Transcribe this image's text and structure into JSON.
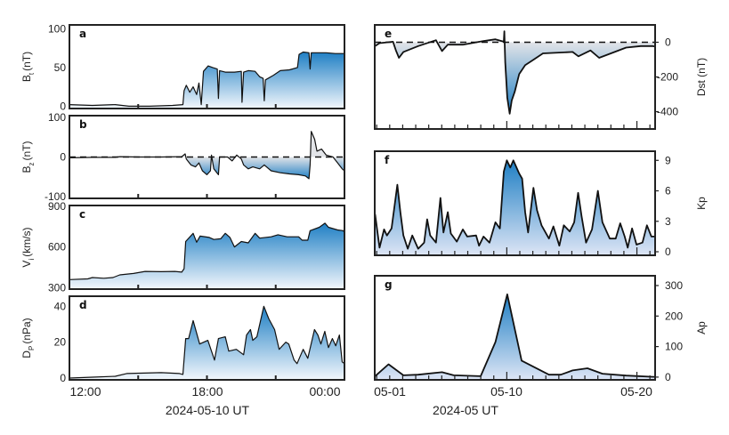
{
  "figure": {
    "left_xlabel": "2024-05-10 UT",
    "left_xticks": [
      "12:00",
      "18:00",
      "00:00"
    ],
    "right_xlabel": "2024-05 UT",
    "right_xticks": [
      "05-01",
      "05-10",
      "05-20"
    ]
  },
  "colors": {
    "blue": "#1f7fc4",
    "light": "#f3f7fc",
    "gray": "#e2e4e8",
    "lavender": "#dde5f5",
    "line": "#111111"
  },
  "chart_data": [
    {
      "id": "a",
      "type": "area",
      "panel_label": "a",
      "ylabel": "B",
      "ylabel_sub": "t",
      "ylabel_unit": "(nT)",
      "xunit": "hours UT",
      "xlim": [
        12,
        24
      ],
      "ylim": [
        -3,
        105
      ],
      "yticks": [
        0,
        50,
        100
      ],
      "xticks": [
        15,
        18,
        21
      ],
      "zero_line": false,
      "points": [
        [
          12,
          2
        ],
        [
          13,
          1
        ],
        [
          14,
          2
        ],
        [
          14.6,
          0
        ],
        [
          15.5,
          0
        ],
        [
          16.5,
          1
        ],
        [
          16.95,
          2
        ],
        [
          17.0,
          20
        ],
        [
          17.1,
          27
        ],
        [
          17.25,
          18
        ],
        [
          17.4,
          25
        ],
        [
          17.55,
          15
        ],
        [
          17.65,
          30
        ],
        [
          17.75,
          2
        ],
        [
          17.85,
          45
        ],
        [
          18.05,
          52
        ],
        [
          18.25,
          50
        ],
        [
          18.45,
          48
        ],
        [
          18.5,
          10
        ],
        [
          18.55,
          46
        ],
        [
          18.8,
          44
        ],
        [
          19.2,
          44
        ],
        [
          19.5,
          45
        ],
        [
          19.53,
          5
        ],
        [
          19.6,
          44
        ],
        [
          19.8,
          46
        ],
        [
          20.1,
          45
        ],
        [
          20.3,
          38
        ],
        [
          20.45,
          36
        ],
        [
          20.5,
          7
        ],
        [
          20.55,
          34
        ],
        [
          20.9,
          40
        ],
        [
          21.2,
          46
        ],
        [
          21.6,
          47
        ],
        [
          21.95,
          50
        ],
        [
          22.02,
          67
        ],
        [
          22.2,
          70
        ],
        [
          22.45,
          69
        ],
        [
          22.5,
          48
        ],
        [
          22.55,
          69
        ],
        [
          23.2,
          69
        ],
        [
          23.6,
          68
        ],
        [
          24,
          68
        ]
      ]
    },
    {
      "id": "b",
      "type": "area",
      "panel_label": "b",
      "ylabel": "B",
      "ylabel_sub": "z",
      "ylabel_unit": "(nT)",
      "xunit": "hours UT",
      "xlim": [
        12,
        24
      ],
      "ylim": [
        -105,
        105
      ],
      "yticks": [
        -100,
        0,
        100
      ],
      "xticks": [
        15,
        18,
        21
      ],
      "zero_line": true,
      "points": [
        [
          12,
          -2
        ],
        [
          13,
          -1
        ],
        [
          14,
          -1
        ],
        [
          14.2,
          1
        ],
        [
          15,
          0
        ],
        [
          16,
          0
        ],
        [
          16.9,
          1
        ],
        [
          17.05,
          8
        ],
        [
          17.1,
          -5
        ],
        [
          17.3,
          -20
        ],
        [
          17.5,
          -25
        ],
        [
          17.65,
          -15
        ],
        [
          17.8,
          -35
        ],
        [
          18.0,
          -45
        ],
        [
          18.15,
          -35
        ],
        [
          18.2,
          5
        ],
        [
          18.3,
          -30
        ],
        [
          18.5,
          -45
        ],
        [
          18.55,
          0
        ],
        [
          18.9,
          0
        ],
        [
          19.1,
          -10
        ],
        [
          19.3,
          5
        ],
        [
          19.5,
          -5
        ],
        [
          19.6,
          -20
        ],
        [
          19.8,
          -30
        ],
        [
          20.0,
          -25
        ],
        [
          20.3,
          -30
        ],
        [
          20.5,
          -20
        ],
        [
          20.8,
          -35
        ],
        [
          21.2,
          -40
        ],
        [
          21.6,
          -43
        ],
        [
          22.0,
          -45
        ],
        [
          22.3,
          -48
        ],
        [
          22.45,
          -55
        ],
        [
          22.5,
          -20
        ],
        [
          22.55,
          65
        ],
        [
          22.7,
          45
        ],
        [
          22.8,
          15
        ],
        [
          23.0,
          20
        ],
        [
          23.2,
          5
        ],
        [
          23.5,
          0
        ],
        [
          23.7,
          -15
        ],
        [
          23.9,
          -30
        ],
        [
          24,
          -35
        ]
      ]
    },
    {
      "id": "c",
      "type": "area",
      "panel_label": "c",
      "ylabel": "V",
      "ylabel_sub": "i",
      "ylabel_unit": "(km/s)",
      "xunit": "hours UT",
      "xlim": [
        12,
        24
      ],
      "ylim": [
        290,
        905
      ],
      "yticks": [
        300,
        600,
        900
      ],
      "xticks": [
        15,
        18,
        21
      ],
      "zero_line": false,
      "points": [
        [
          12,
          360
        ],
        [
          12.8,
          365
        ],
        [
          13,
          375
        ],
        [
          13.5,
          370
        ],
        [
          13.9,
          375
        ],
        [
          14.2,
          395
        ],
        [
          14.8,
          405
        ],
        [
          15.3,
          420
        ],
        [
          16.0,
          418
        ],
        [
          16.6,
          420
        ],
        [
          16.9,
          415
        ],
        [
          17.0,
          440
        ],
        [
          17.07,
          640
        ],
        [
          17.4,
          700
        ],
        [
          17.55,
          635
        ],
        [
          17.7,
          680
        ],
        [
          18.1,
          670
        ],
        [
          18.3,
          655
        ],
        [
          18.6,
          660
        ],
        [
          18.8,
          700
        ],
        [
          19.0,
          670
        ],
        [
          19.2,
          600
        ],
        [
          19.5,
          640
        ],
        [
          19.8,
          630
        ],
        [
          20.1,
          700
        ],
        [
          20.3,
          665
        ],
        [
          20.8,
          675
        ],
        [
          21.1,
          690
        ],
        [
          21.5,
          675
        ],
        [
          22.0,
          675
        ],
        [
          22.15,
          650
        ],
        [
          22.4,
          650
        ],
        [
          22.5,
          720
        ],
        [
          22.9,
          745
        ],
        [
          23.15,
          775
        ],
        [
          23.3,
          745
        ],
        [
          23.7,
          725
        ],
        [
          23.95,
          720
        ],
        [
          24,
          705
        ]
      ]
    },
    {
      "id": "d",
      "type": "area",
      "panel_label": "d",
      "ylabel": "D",
      "ylabel_sub": "P",
      "ylabel_unit": "(nPa)",
      "xunit": "hours UT",
      "xlim": [
        12,
        24
      ],
      "ylim": [
        -1,
        45.6
      ],
      "yticks": [
        0,
        20,
        40
      ],
      "xticks": [
        15,
        18,
        21
      ],
      "zero_line": false,
      "points": [
        [
          12,
          0
        ],
        [
          13,
          0.5
        ],
        [
          14,
          1
        ],
        [
          14.5,
          2.5
        ],
        [
          16,
          3
        ],
        [
          16.8,
          2.5
        ],
        [
          16.95,
          2
        ],
        [
          17.07,
          22
        ],
        [
          17.2,
          22
        ],
        [
          17.4,
          32
        ],
        [
          17.68,
          19
        ],
        [
          18.04,
          21
        ],
        [
          18.33,
          10
        ],
        [
          18.5,
          22
        ],
        [
          18.8,
          23
        ],
        [
          18.95,
          15
        ],
        [
          19.28,
          16
        ],
        [
          19.6,
          13
        ],
        [
          19.73,
          24
        ],
        [
          19.9,
          27
        ],
        [
          20.0,
          21
        ],
        [
          20.18,
          23
        ],
        [
          20.48,
          40
        ],
        [
          20.7,
          33
        ],
        [
          20.95,
          27
        ],
        [
          21.15,
          16
        ],
        [
          21.44,
          20
        ],
        [
          21.57,
          19
        ],
        [
          21.8,
          10
        ],
        [
          21.93,
          8
        ],
        [
          22.2,
          16
        ],
        [
          22.4,
          11
        ],
        [
          22.69,
          27
        ],
        [
          22.84,
          24
        ],
        [
          22.97,
          19
        ],
        [
          23.14,
          26
        ],
        [
          23.3,
          17
        ],
        [
          23.47,
          22
        ],
        [
          23.62,
          18
        ],
        [
          23.78,
          24
        ],
        [
          23.9,
          9
        ],
        [
          24,
          8
        ]
      ]
    },
    {
      "id": "e",
      "type": "area",
      "panel_label": "e",
      "ylabel": "Dst (nT)",
      "ylabel_sub": "",
      "ylabel_unit": "",
      "xunit": "days since 2024-05-01",
      "xlim": [
        -1.15,
        20.4
      ],
      "ylim": [
        -500,
        100
      ],
      "yticks": [
        -400,
        -200,
        0
      ],
      "zero_line": true,
      "points": [
        [
          -1.12,
          -22
        ],
        [
          -0.78,
          -5
        ],
        [
          0.25,
          3
        ],
        [
          0.48,
          -47
        ],
        [
          0.71,
          -90
        ],
        [
          1.05,
          -56
        ],
        [
          2.19,
          -22
        ],
        [
          3.56,
          12
        ],
        [
          4.02,
          -51
        ],
        [
          4.47,
          -14
        ],
        [
          5.62,
          -14
        ],
        [
          7.21,
          7
        ],
        [
          8.13,
          17
        ],
        [
          8.77,
          3
        ],
        [
          8.81,
          63
        ],
        [
          8.88,
          -115
        ],
        [
          9.04,
          -319
        ],
        [
          9.22,
          -412
        ],
        [
          9.38,
          -336
        ],
        [
          9.61,
          -285
        ],
        [
          9.95,
          -183
        ],
        [
          10.41,
          -132
        ],
        [
          11.1,
          -98
        ],
        [
          11.78,
          -64
        ],
        [
          14.06,
          -56
        ],
        [
          14.5,
          -81
        ],
        [
          15.43,
          -47
        ],
        [
          16.1,
          -90
        ],
        [
          17.0,
          -64
        ],
        [
          18.17,
          -31
        ],
        [
          19.3,
          -22
        ],
        [
          20.2,
          -22
        ],
        [
          20.4,
          -25
        ]
      ]
    },
    {
      "id": "f",
      "type": "area",
      "panel_label": "f",
      "ylabel": "Kp",
      "ylabel_sub": "",
      "ylabel_unit": "",
      "xunit": "days since 2024-05-01",
      "xlim": [
        -1.15,
        20.4
      ],
      "ylim": [
        -0.35,
        9.9
      ],
      "yticks": [
        0,
        3,
        6,
        9
      ],
      "zero_line": false,
      "points": [
        [
          -1.12,
          3.7
        ],
        [
          -0.78,
          0.4
        ],
        [
          -0.43,
          2.2
        ],
        [
          -0.21,
          1.6
        ],
        [
          0.14,
          2.3
        ],
        [
          0.59,
          6.6
        ],
        [
          0.82,
          3.9
        ],
        [
          1.05,
          1.6
        ],
        [
          1.39,
          0.3
        ],
        [
          1.74,
          1.6
        ],
        [
          2.19,
          0.3
        ],
        [
          2.65,
          0.9
        ],
        [
          2.88,
          3.2
        ],
        [
          3.11,
          1.6
        ],
        [
          3.56,
          0.9
        ],
        [
          3.9,
          5.3
        ],
        [
          4.13,
          1.9
        ],
        [
          4.47,
          3.9
        ],
        [
          4.7,
          1.8
        ],
        [
          5.16,
          1.0
        ],
        [
          5.62,
          2.2
        ],
        [
          5.96,
          1.5
        ],
        [
          6.64,
          1.6
        ],
        [
          6.87,
          0.6
        ],
        [
          7.21,
          1.5
        ],
        [
          7.67,
          0.9
        ],
        [
          8.13,
          2.9
        ],
        [
          8.47,
          2.3
        ],
        [
          8.77,
          7.9
        ],
        [
          9.0,
          9.0
        ],
        [
          9.27,
          8.3
        ],
        [
          9.5,
          9.0
        ],
        [
          9.95,
          7.7
        ],
        [
          10.18,
          7.2
        ],
        [
          10.41,
          3.9
        ],
        [
          10.64,
          1.9
        ],
        [
          11.05,
          6.3
        ],
        [
          11.32,
          4.1
        ],
        [
          11.67,
          2.6
        ],
        [
          12.24,
          1.3
        ],
        [
          12.58,
          2.5
        ],
        [
          13.04,
          0.6
        ],
        [
          13.38,
          2.6
        ],
        [
          13.84,
          2.0
        ],
        [
          14.18,
          2.9
        ],
        [
          14.48,
          5.8
        ],
        [
          14.75,
          3.5
        ],
        [
          15.09,
          0.9
        ],
        [
          15.55,
          2.2
        ],
        [
          16.0,
          6.0
        ],
        [
          16.35,
          2.9
        ],
        [
          16.92,
          1.3
        ],
        [
          17.37,
          1.3
        ],
        [
          17.72,
          2.8
        ],
        [
          18.06,
          1.5
        ],
        [
          18.29,
          0.4
        ],
        [
          18.63,
          2.3
        ],
        [
          18.97,
          0.7
        ],
        [
          19.43,
          0.9
        ],
        [
          19.77,
          2.6
        ],
        [
          20.11,
          1.5
        ],
        [
          20.34,
          1.5
        ]
      ]
    },
    {
      "id": "g",
      "type": "area",
      "panel_label": "g",
      "ylabel": "Ap",
      "ylabel_sub": "",
      "ylabel_unit": "",
      "xunit": "days since 2024-05-01",
      "xlim": [
        -1.15,
        20.4
      ],
      "ylim": [
        -9,
        332
      ],
      "yticks": [
        0,
        100,
        200,
        300
      ],
      "zero_line": false,
      "points": [
        [
          -1.12,
          3
        ],
        [
          -0.09,
          42
        ],
        [
          1.05,
          6
        ],
        [
          2.19,
          8
        ],
        [
          4.02,
          16
        ],
        [
          4.93,
          6
        ],
        [
          6.99,
          3
        ],
        [
          8.13,
          115
        ],
        [
          9.04,
          271
        ],
        [
          10.14,
          54
        ],
        [
          12.24,
          8
        ],
        [
          13.15,
          8
        ],
        [
          14.06,
          22
        ],
        [
          15.2,
          29
        ],
        [
          16.35,
          11
        ],
        [
          18.17,
          5
        ],
        [
          20.22,
          1
        ],
        [
          20.4,
          1
        ]
      ]
    }
  ]
}
